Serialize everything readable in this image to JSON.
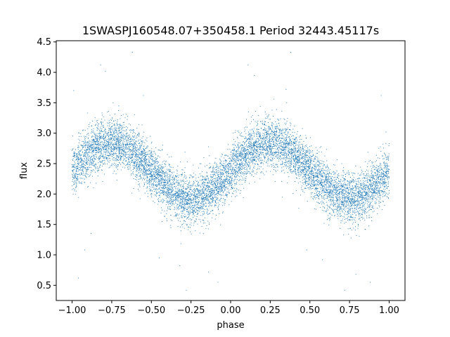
{
  "chart_data": {
    "type": "scatter",
    "title": "1SWASPJ160548.07+350458.1 Period 32443.45117s",
    "xlabel": "phase",
    "ylabel": "flux",
    "xlim": [
      -1.1,
      1.1
    ],
    "ylim": [
      0.25,
      4.52
    ],
    "xticks": [
      -1.0,
      -0.75,
      -0.5,
      -0.25,
      0.0,
      0.25,
      0.5,
      0.75,
      1.0
    ],
    "xtick_labels": [
      "−1.00",
      "−0.75",
      "−0.50",
      "−0.25",
      "0.00",
      "0.25",
      "0.50",
      "0.75",
      "1.00"
    ],
    "yticks": [
      0.5,
      1.0,
      1.5,
      2.0,
      2.5,
      3.0,
      3.5,
      4.0,
      4.5
    ],
    "ytick_labels": [
      "0.5",
      "1.0",
      "1.5",
      "2.0",
      "2.5",
      "3.0",
      "3.5",
      "4.0",
      "4.5"
    ],
    "grid": false,
    "legend": "none",
    "point_color": "#1f77b4",
    "series": [
      {
        "model": "sinusoid",
        "phase_range": [
          -1.0,
          1.0
        ],
        "mean_flux": 2.38,
        "amplitude": 0.46,
        "peak_phase": 0.25,
        "period_in_phase": 1.0,
        "scatter_sigma": 0.2,
        "approx_points": 9000,
        "outliers": [
          {
            "x": -0.99,
            "y": 3.7
          },
          {
            "x": -0.96,
            "y": 0.62
          },
          {
            "x": -0.92,
            "y": 1.08
          },
          {
            "x": -0.88,
            "y": 1.35
          },
          {
            "x": -0.82,
            "y": 4.12
          },
          {
            "x": -0.79,
            "y": 4.02
          },
          {
            "x": -0.62,
            "y": 4.33
          },
          {
            "x": -0.55,
            "y": 3.62
          },
          {
            "x": -0.45,
            "y": 0.95
          },
          {
            "x": -0.32,
            "y": 0.82
          },
          {
            "x": -0.28,
            "y": 0.42
          },
          {
            "x": -0.14,
            "y": 0.72
          },
          {
            "x": -0.08,
            "y": 0.55
          },
          {
            "x": 0.11,
            "y": 4.12
          },
          {
            "x": 0.15,
            "y": 3.95
          },
          {
            "x": 0.35,
            "y": 3.72
          },
          {
            "x": 0.38,
            "y": 4.33
          },
          {
            "x": 0.48,
            "y": 1.08
          },
          {
            "x": 0.58,
            "y": 0.92
          },
          {
            "x": 0.72,
            "y": 0.42
          },
          {
            "x": 0.79,
            "y": 0.68
          },
          {
            "x": 0.88,
            "y": 0.55
          },
          {
            "x": 0.95,
            "y": 3.62
          },
          {
            "x": 0.98,
            "y": 3.02
          }
        ]
      }
    ]
  }
}
